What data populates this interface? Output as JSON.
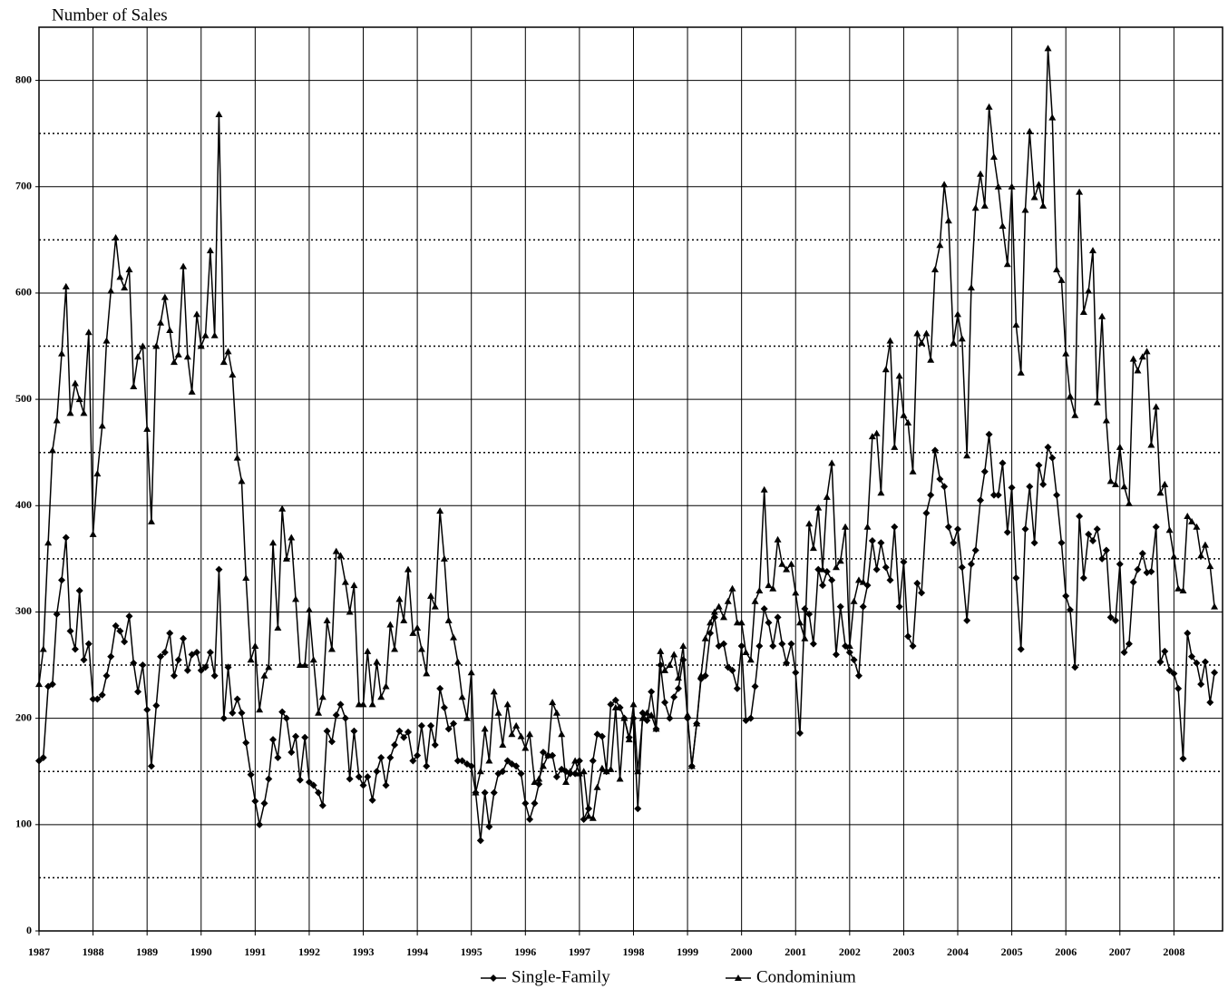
{
  "chart_data": {
    "type": "line",
    "y_label": "Number of Sales",
    "xlim": [
      1987,
      2008.9
    ],
    "xticks": [
      1987,
      1988,
      1989,
      1990,
      1991,
      1992,
      1993,
      1994,
      1995,
      1996,
      1997,
      1998,
      1999,
      2000,
      2001,
      2002,
      2003,
      2004,
      2005,
      2006,
      2007,
      2008
    ],
    "ylim": [
      0,
      850
    ],
    "yticks": [
      0,
      100,
      200,
      300,
      400,
      500,
      600,
      700,
      800
    ],
    "minor_yticks": [
      50,
      150,
      250,
      350,
      450,
      550,
      650,
      750
    ],
    "grid": true,
    "legend": "bottom",
    "x": [
      1987,
      1987.08,
      1987.17,
      1987.25,
      1987.33,
      1987.42,
      1987.5,
      1987.58,
      1987.67,
      1987.75,
      1987.83,
      1987.92,
      1988,
      1988.08,
      1988.17,
      1988.25,
      1988.33,
      1988.42,
      1988.5,
      1988.58,
      1988.67,
      1988.75,
      1988.83,
      1988.92,
      1989,
      1989.08,
      1989.17,
      1989.25,
      1989.33,
      1989.42,
      1989.5,
      1989.58,
      1989.67,
      1989.75,
      1989.83,
      1989.92,
      1990,
      1990.08,
      1990.17,
      1990.25,
      1990.33,
      1990.42,
      1990.5,
      1990.58,
      1990.67,
      1990.75,
      1990.83,
      1990.92,
      1991,
      1991.08,
      1991.17,
      1991.25,
      1991.33,
      1991.42,
      1991.5,
      1991.58,
      1991.67,
      1991.75,
      1991.83,
      1991.92,
      1992,
      1992.08,
      1992.17,
      1992.25,
      1992.33,
      1992.42,
      1992.5,
      1992.58,
      1992.67,
      1992.75,
      1992.83,
      1992.92,
      1993,
      1993.08,
      1993.17,
      1993.25,
      1993.33,
      1993.42,
      1993.5,
      1993.58,
      1993.67,
      1993.75,
      1993.83,
      1993.92,
      1994,
      1994.08,
      1994.17,
      1994.25,
      1994.33,
      1994.42,
      1994.5,
      1994.58,
      1994.67,
      1994.75,
      1994.83,
      1994.92,
      1995,
      1995.08,
      1995.17,
      1995.25,
      1995.33,
      1995.42,
      1995.5,
      1995.58,
      1995.67,
      1995.75,
      1995.83,
      1995.92,
      1996,
      1996.08,
      1996.17,
      1996.25,
      1996.33,
      1996.42,
      1996.5,
      1996.58,
      1996.67,
      1996.75,
      1996.83,
      1996.92,
      1997,
      1997.08,
      1997.17,
      1997.25,
      1997.33,
      1997.42,
      1997.5,
      1997.58,
      1997.67,
      1997.75,
      1997.83,
      1997.92,
      1998,
      1998.08,
      1998.17,
      1998.25,
      1998.33,
      1998.42,
      1998.5,
      1998.58,
      1998.67,
      1998.75,
      1998.83,
      1998.92,
      1999,
      1999.08,
      1999.17,
      1999.25,
      1999.33,
      1999.42,
      1999.5,
      1999.58,
      1999.67,
      1999.75,
      1999.83,
      1999.92,
      2000,
      2000.08,
      2000.17,
      2000.25,
      2000.33,
      2000.42,
      2000.5,
      2000.58,
      2000.67,
      2000.75,
      2000.83,
      2000.92,
      2001,
      2001.08,
      2001.17,
      2001.25,
      2001.33,
      2001.42,
      2001.5,
      2001.58,
      2001.67,
      2001.75,
      2001.83,
      2001.92,
      2002,
      2002.08,
      2002.17,
      2002.25,
      2002.33,
      2002.42,
      2002.5,
      2002.58,
      2002.67,
      2002.75,
      2002.83,
      2002.92,
      2003,
      2003.08,
      2003.17,
      2003.25,
      2003.33,
      2003.42,
      2003.5,
      2003.58,
      2003.67,
      2003.75,
      2003.83,
      2003.92,
      2004,
      2004.08,
      2004.17,
      2004.25,
      2004.33,
      2004.42,
      2004.5,
      2004.58,
      2004.67,
      2004.75,
      2004.83,
      2004.92,
      2005,
      2005.08,
      2005.17,
      2005.25,
      2005.33,
      2005.42,
      2005.5,
      2005.58,
      2005.67,
      2005.75,
      2005.83,
      2005.92,
      2006,
      2006.08,
      2006.17,
      2006.25,
      2006.33,
      2006.42,
      2006.5,
      2006.58,
      2006.67,
      2006.75,
      2006.83,
      2006.92,
      2007,
      2007.08,
      2007.17,
      2007.25,
      2007.33,
      2007.42,
      2007.5,
      2007.58,
      2007.67,
      2007.75,
      2007.83,
      2007.92,
      2008,
      2008.08,
      2008.17,
      2008.25,
      2008.33,
      2008.42,
      2008.5,
      2008.58,
      2008.67,
      2008.75
    ],
    "series": [
      {
        "name": "Single-Family",
        "color": "#000000",
        "marker": "diamond",
        "values": [
          160,
          163,
          230,
          232,
          298,
          330,
          370,
          282,
          265,
          320,
          255,
          270,
          218,
          218,
          222,
          240,
          258,
          287,
          282,
          272,
          296,
          252,
          225,
          250,
          208,
          155,
          212,
          258,
          262,
          280,
          240,
          255,
          275,
          245,
          260,
          262,
          245,
          248,
          262,
          240,
          340,
          200,
          248,
          205,
          218,
          205,
          177,
          147,
          122,
          100,
          120,
          143,
          180,
          163,
          206,
          200,
          168,
          183,
          142,
          182,
          140,
          137,
          130,
          118,
          188,
          178,
          203,
          213,
          200,
          143,
          188,
          145,
          137,
          145,
          123,
          150,
          163,
          137,
          163,
          175,
          188,
          182,
          187,
          160,
          165,
          193,
          155,
          193,
          175,
          228,
          210,
          190,
          195,
          160,
          160,
          157,
          155,
          130,
          85,
          130,
          98,
          130,
          148,
          150,
          160,
          157,
          155,
          148,
          120,
          105,
          120,
          138,
          168,
          165,
          165,
          145,
          152,
          150,
          148,
          148,
          160,
          105,
          115,
          160,
          185,
          183,
          150,
          213,
          217,
          210,
          200,
          182,
          200,
          115,
          205,
          198,
          225,
          190,
          250,
          215,
          200,
          220,
          228,
          255,
          200,
          155,
          195,
          237,
          240,
          280,
          295,
          268,
          270,
          248,
          245,
          228,
          268,
          198,
          200,
          230,
          268,
          303,
          290,
          268,
          295,
          270,
          252,
          270,
          243,
          186,
          303,
          298,
          270,
          340,
          325,
          338,
          330,
          260,
          305,
          268,
          262,
          255,
          240,
          305,
          325,
          367,
          340,
          365,
          342,
          330,
          380,
          305,
          347,
          277,
          268,
          327,
          318,
          393,
          410,
          452,
          425,
          418,
          380,
          365,
          378,
          342,
          292,
          345,
          358,
          405,
          432,
          467,
          410,
          410,
          440,
          375,
          417,
          332,
          265,
          378,
          418,
          365,
          438,
          420,
          455,
          445,
          410,
          365,
          315,
          302,
          248,
          390,
          332,
          373,
          367,
          378,
          350,
          358,
          295,
          292,
          345,
          262,
          270,
          328,
          340,
          355,
          337,
          338,
          380,
          253,
          263,
          245,
          242,
          228,
          162,
          280,
          258,
          252,
          232,
          253,
          215,
          243
        ]
      },
      {
        "name": "Condominium",
        "color": "#000000",
        "marker": "triangle",
        "values": [
          232,
          265,
          365,
          452,
          480,
          543,
          606,
          487,
          515,
          500,
          487,
          563,
          373,
          430,
          475,
          555,
          602,
          652,
          615,
          605,
          622,
          512,
          540,
          550,
          472,
          385,
          550,
          572,
          596,
          565,
          535,
          542,
          625,
          540,
          507,
          580,
          550,
          560,
          640,
          560,
          768,
          535,
          545,
          523,
          445,
          423,
          332,
          255,
          268,
          208,
          240,
          248,
          365,
          285,
          397,
          350,
          370,
          312,
          250,
          250,
          302,
          255,
          205,
          220,
          292,
          265,
          357,
          353,
          328,
          300,
          325,
          213,
          213,
          263,
          213,
          253,
          220,
          230,
          288,
          265,
          312,
          292,
          340,
          280,
          285,
          265,
          242,
          315,
          305,
          395,
          350,
          292,
          276,
          253,
          220,
          200,
          243,
          130,
          150,
          190,
          160,
          225,
          205,
          175,
          213,
          185,
          193,
          183,
          172,
          185,
          140,
          143,
          155,
          165,
          215,
          205,
          185,
          140,
          150,
          160,
          148,
          150,
          108,
          106,
          135,
          153,
          150,
          152,
          210,
          143,
          200,
          180,
          213,
          150,
          200,
          205,
          203,
          190,
          263,
          245,
          250,
          260,
          238,
          268,
          203,
          155,
          195,
          240,
          275,
          290,
          300,
          305,
          295,
          310,
          322,
          290,
          290,
          262,
          255,
          310,
          320,
          415,
          325,
          322,
          368,
          345,
          340,
          345,
          318,
          290,
          275,
          383,
          360,
          398,
          340,
          408,
          440,
          342,
          348,
          380,
          268,
          310,
          330,
          328,
          380,
          465,
          468,
          412,
          528,
          555,
          455,
          522,
          485,
          478,
          432,
          562,
          553,
          562,
          537,
          622,
          645,
          702,
          668,
          553,
          580,
          557,
          447,
          605,
          680,
          712,
          682,
          775,
          728,
          700,
          663,
          627,
          700,
          570,
          525,
          678,
          752,
          690,
          702,
          682,
          830,
          765,
          622,
          612,
          543,
          503,
          485,
          695,
          582,
          602,
          640,
          497,
          578,
          480,
          423,
          420,
          455,
          418,
          402,
          538,
          527,
          540,
          545,
          457,
          493,
          412,
          420,
          377,
          352,
          322,
          320,
          390,
          385,
          380,
          353,
          363,
          343,
          305
        ]
      }
    ]
  }
}
